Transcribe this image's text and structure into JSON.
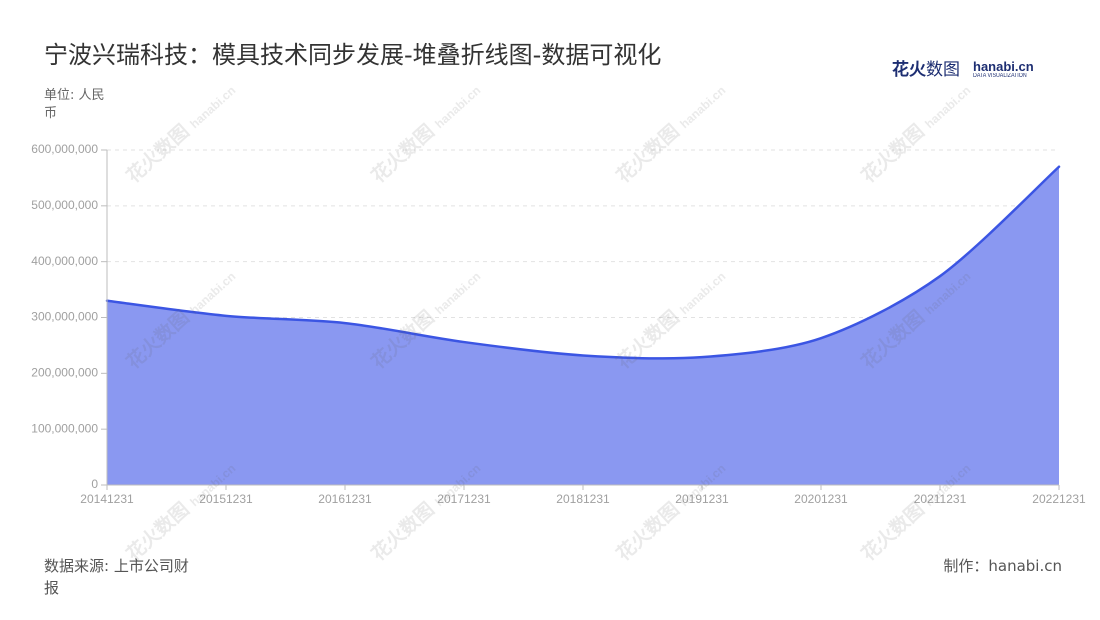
{
  "chart_data": {
    "type": "area",
    "stacked": true,
    "smooth": true,
    "title": "宁波兴瑞科技：模具技术同步发展-堆叠折线图-数据可视化",
    "ylabel": "单位: 人民币",
    "categories": [
      "20141231",
      "20151231",
      "20161231",
      "20171231",
      "20181231",
      "20191231",
      "20201231",
      "20211231",
      "20221231"
    ],
    "series": [
      {
        "values": [
          330000000,
          303000000,
          290000000,
          256000000,
          232000000,
          229000000,
          263000000,
          374000000,
          570000000
        ]
      }
    ],
    "ylim": [
      0,
      600000000
    ],
    "yticks": [
      0,
      100000000,
      200000000,
      300000000,
      400000000,
      500000000,
      600000000
    ],
    "grid": true
  },
  "colors": {
    "line": "#3b55e3",
    "area": "#8a98f1",
    "grid": "#e2e2e2",
    "axis": "#bdbdbd",
    "tick_text": "#a0a0a0",
    "logo": "#1d2e72"
  },
  "logo": {
    "cn_bold": "花火",
    "cn_light": "数图",
    "en": "hanabi.cn",
    "sub": "DATA VISUALIZATION"
  },
  "watermark": {
    "cn": "花火数图",
    "en": "hanabi.cn"
  },
  "footer": {
    "source": "数据来源: 上市公司财报",
    "credit": "制作：hanabi.cn"
  }
}
